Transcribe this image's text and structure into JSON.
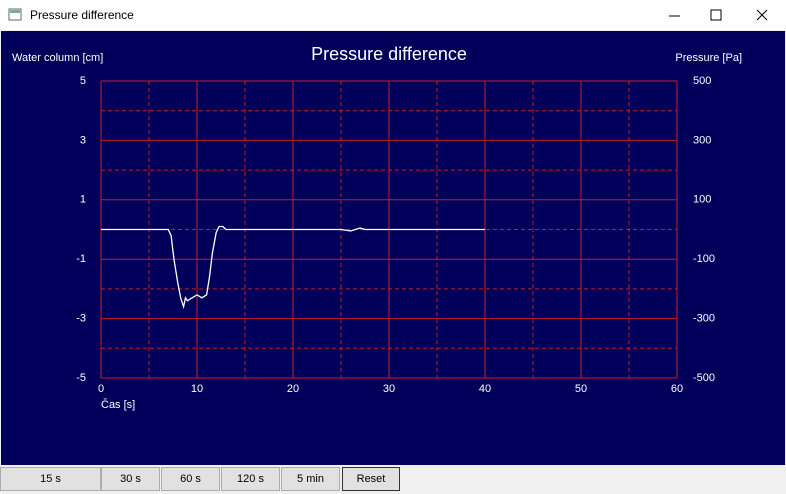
{
  "window": {
    "title": "Pressure difference"
  },
  "chart_data": {
    "type": "line",
    "title": "Pressure difference",
    "y_label": "Water column [cm]",
    "y2_label": "Pressure [Pa]",
    "x_label": "Čas [s]",
    "x": [
      0,
      2,
      4,
      6,
      7,
      7.3,
      7.6,
      8,
      8.3,
      8.6,
      8.8,
      9,
      9.5,
      10,
      10.5,
      11,
      11.3,
      11.6,
      12,
      12.3,
      12.7,
      13,
      13.5,
      14,
      20,
      25,
      26,
      27,
      27.5,
      30,
      35,
      40
    ],
    "values": [
      0,
      0,
      0,
      0,
      0,
      -0.2,
      -1,
      -1.8,
      -2.3,
      -2.6,
      -2.3,
      -2.4,
      -2.3,
      -2.2,
      -2.3,
      -2.2,
      -1.6,
      -0.8,
      -0.1,
      0.1,
      0.1,
      0,
      0,
      0,
      0,
      0,
      -0.05,
      0.05,
      0,
      0,
      0,
      0
    ],
    "color": "#ffffff",
    "xlim": [
      0,
      60
    ],
    "xticks": [
      0,
      10,
      20,
      30,
      40,
      50,
      60
    ],
    "minor_xticks": [
      5,
      15,
      25,
      35,
      45,
      55
    ],
    "ylim": [
      -5,
      5
    ],
    "yticks": [
      -5,
      -3,
      -1,
      1,
      3,
      5
    ],
    "minor_yticks": [
      -4,
      -2,
      0,
      2,
      4
    ],
    "y2lim": [
      -500,
      500
    ],
    "y2ticks": [
      -500,
      -300,
      -100,
      100,
      300,
      500
    ],
    "grid": true,
    "grid_color": "#c81e1e",
    "background": "#00005a"
  },
  "buttons": [
    "15 s",
    "30 s",
    "60 s",
    "120 s",
    "5 min",
    "Reset"
  ]
}
